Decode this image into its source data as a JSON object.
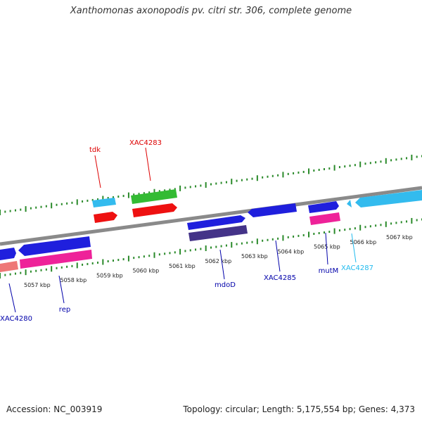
{
  "title": "Xanthomonas axonopodis pv. citri str. 306, complete genome",
  "footer": {
    "accession": "Accession: NC_003919",
    "topology": "Topology: circular; Length: 5,175,554 bp; Genes: 4,373"
  },
  "colors": {
    "backbone": "#8a8a8a",
    "ticks": "#2a8a2a",
    "label_red": "#dd0000",
    "label_blue": "#0000aa",
    "label_cyan": "#22bbee",
    "blue_gene": "#1f1fdd",
    "pink_gene": "#ee2299",
    "red_gene": "#ee1111",
    "green_gene": "#33bb33",
    "cyan_gene": "#33bbee",
    "salmon_gene": "#ee7777",
    "navy_gene": "#443388"
  },
  "kbp_labels": [
    "5057 kbp",
    "5058 kbp",
    "5059 kbp",
    "5060 kbp",
    "5061 kbp",
    "5062 kbp",
    "5063 kbp",
    "5064 kbp",
    "5065 kbp",
    "5066 kbp",
    "5067 kbp"
  ],
  "gene_labels": {
    "tdk": "tdk",
    "xac4283": "XAC4283",
    "xac4280": "XAC4280",
    "rep": "rep",
    "mdod": "mdoD",
    "xac4285": "XAC4285",
    "mutm": "mutM",
    "xac4287": "XAC4287"
  }
}
